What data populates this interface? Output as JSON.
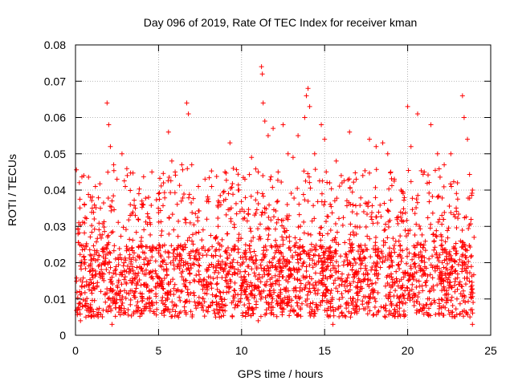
{
  "chart_data": {
    "type": "scatter",
    "title": "Day 096 of 2019, Rate Of TEC Index for receiver kman",
    "xlabel": "GPS time / hours",
    "ylabel": "ROTI / TECUs",
    "xlim": [
      0,
      25
    ],
    "ylim": [
      0,
      0.08
    ],
    "x_ticks": [
      0,
      5,
      10,
      15,
      20,
      25
    ],
    "x_tick_labels": [
      "0",
      "5",
      "10",
      "15",
      "20",
      "25"
    ],
    "y_ticks": [
      0,
      0.01,
      0.02,
      0.03,
      0.04,
      0.05,
      0.06,
      0.07,
      0.08
    ],
    "y_tick_labels": [
      "0",
      "0.01",
      "0.02",
      "0.03",
      "0.04",
      "0.05",
      "0.06",
      "0.07",
      "0.08"
    ],
    "grid": true,
    "marker": "+",
    "marker_color": "#ff0000",
    "series": [
      {
        "name": "ROTI",
        "data_range_x": [
          0.05,
          24.0
        ],
        "typical_band": [
          0.005,
          0.025
        ],
        "points": [
          [
            0.2,
            0.031
          ],
          [
            0.5,
            0.044
          ],
          [
            0.9,
            0.038
          ],
          [
            1.2,
            0.041
          ],
          [
            1.5,
            0.035
          ],
          [
            1.9,
            0.064
          ],
          [
            2.0,
            0.058
          ],
          [
            2.1,
            0.052
          ],
          [
            2.3,
            0.047
          ],
          [
            2.5,
            0.043
          ],
          [
            2.8,
            0.05
          ],
          [
            3.0,
            0.041
          ],
          [
            3.3,
            0.036
          ],
          [
            3.6,
            0.033
          ],
          [
            4.0,
            0.037
          ],
          [
            4.4,
            0.038
          ],
          [
            4.6,
            0.045
          ],
          [
            5.0,
            0.039
          ],
          [
            5.3,
            0.042
          ],
          [
            5.6,
            0.056
          ],
          [
            5.8,
            0.048
          ],
          [
            6.0,
            0.045
          ],
          [
            6.4,
            0.047
          ],
          [
            6.7,
            0.064
          ],
          [
            6.8,
            0.061
          ],
          [
            7.0,
            0.047
          ],
          [
            7.4,
            0.041
          ],
          [
            7.8,
            0.043
          ],
          [
            8.2,
            0.041
          ],
          [
            8.6,
            0.037
          ],
          [
            9.0,
            0.045
          ],
          [
            9.3,
            0.053
          ],
          [
            9.5,
            0.046
          ],
          [
            9.8,
            0.04
          ],
          [
            10.2,
            0.043
          ],
          [
            10.6,
            0.049
          ],
          [
            11.0,
            0.045
          ],
          [
            11.2,
            0.074
          ],
          [
            11.25,
            0.072
          ],
          [
            11.3,
            0.064
          ],
          [
            11.4,
            0.059
          ],
          [
            11.6,
            0.055
          ],
          [
            11.9,
            0.057
          ],
          [
            12.2,
            0.045
          ],
          [
            12.5,
            0.058
          ],
          [
            12.8,
            0.05
          ],
          [
            13.1,
            0.049
          ],
          [
            13.4,
            0.055
          ],
          [
            13.8,
            0.06
          ],
          [
            13.9,
            0.066
          ],
          [
            14.0,
            0.068
          ],
          [
            14.1,
            0.063
          ],
          [
            14.4,
            0.05
          ],
          [
            14.8,
            0.058
          ],
          [
            15.0,
            0.054
          ],
          [
            15.3,
            0.042
          ],
          [
            15.7,
            0.048
          ],
          [
            16.0,
            0.044
          ],
          [
            16.5,
            0.056
          ],
          [
            16.9,
            0.043
          ],
          [
            17.3,
            0.044
          ],
          [
            17.7,
            0.054
          ],
          [
            18.1,
            0.052
          ],
          [
            18.5,
            0.053
          ],
          [
            18.8,
            0.05
          ],
          [
            19.2,
            0.043
          ],
          [
            19.6,
            0.04
          ],
          [
            20.0,
            0.063
          ],
          [
            20.2,
            0.052
          ],
          [
            20.6,
            0.061
          ],
          [
            21.0,
            0.045
          ],
          [
            21.4,
            0.058
          ],
          [
            21.8,
            0.05
          ],
          [
            22.2,
            0.047
          ],
          [
            22.6,
            0.05
          ],
          [
            23.0,
            0.042
          ],
          [
            23.3,
            0.066
          ],
          [
            23.4,
            0.06
          ],
          [
            23.6,
            0.054
          ],
          [
            23.9,
            0.04
          ],
          [
            0.3,
            0.004
          ],
          [
            2.2,
            0.003
          ],
          [
            6.2,
            0.005
          ],
          [
            11.0,
            0.004
          ],
          [
            15.5,
            0.003
          ],
          [
            19.0,
            0.006
          ],
          [
            23.9,
            0.003
          ]
        ]
      }
    ]
  }
}
